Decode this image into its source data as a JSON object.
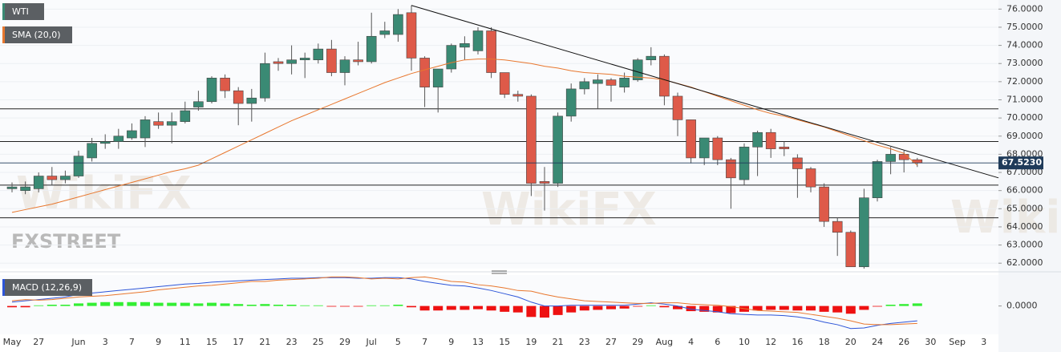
{
  "chart_data": {
    "type": "candlestick",
    "categories": [
      "May",
      null,
      "27",
      null,
      null,
      "Jun",
      null,
      "3",
      null,
      "7",
      null,
      "9",
      null,
      "11",
      null,
      "15",
      null,
      "17",
      null,
      "21",
      null,
      "23",
      null,
      "25",
      null,
      "29",
      null,
      "Jul",
      null,
      "5",
      null,
      "7",
      null,
      "9",
      null,
      "13",
      null,
      "15",
      null,
      "19",
      null,
      "21",
      null,
      "23",
      null,
      "27",
      null,
      "29",
      null,
      "Aug",
      null,
      "4",
      null,
      "6",
      null,
      "10",
      null,
      "12",
      null,
      "16",
      null,
      "18",
      null,
      "20",
      null,
      "24",
      null,
      "26",
      null,
      "30",
      null,
      "Sep",
      null,
      "3",
      null
    ],
    "series": [
      {
        "name": "WTI",
        "up_color": "#3a8a74",
        "down_color": "#de5a49",
        "open": [
          66.1,
          66.0,
          66.1,
          66.8,
          66.6,
          66.8,
          67.8,
          68.6,
          68.7,
          68.9,
          68.9,
          69.8,
          69.6,
          69.8,
          70.6,
          70.9,
          72.2,
          71.5,
          70.8,
          71.1,
          73.1,
          73.0,
          73.2,
          73.2,
          73.8,
          72.5,
          73.2,
          73.1,
          74.6,
          74.6,
          75.8,
          73.3,
          71.7,
          72.7,
          73.9,
          73.7,
          74.8,
          72.5,
          71.3,
          71.2,
          66.5,
          66.4,
          70.1,
          71.6,
          71.9,
          72.1,
          71.7,
          72.1,
          73.2,
          73.4,
          71.2,
          69.9,
          67.8,
          68.9,
          67.7,
          66.6,
          68.4,
          69.2,
          68.4,
          67.8,
          67.2,
          66.2,
          64.3,
          63.7,
          61.8,
          65.6,
          67.6,
          68.0,
          67.7,
          null,
          null,
          null,
          null,
          null,
          null
        ],
        "high": [
          66.45,
          66.5,
          67.0,
          67.3,
          67.1,
          68.2,
          68.9,
          69.1,
          69.4,
          69.7,
          70.1,
          70.3,
          70.3,
          70.9,
          71.5,
          72.3,
          72.4,
          71.7,
          71.6,
          73.6,
          73.3,
          74.0,
          73.6,
          74.1,
          74.3,
          73.4,
          74.2,
          75.8,
          75.3,
          76.0,
          76.2,
          73.4,
          72.7,
          74.1,
          74.5,
          75.0,
          75.0,
          72.5,
          71.5,
          71.3,
          67.3,
          70.3,
          71.9,
          72.2,
          72.4,
          72.2,
          72.5,
          73.3,
          73.9,
          73.5,
          71.4,
          69.9,
          68.9,
          69.0,
          67.8,
          68.6,
          69.3,
          69.4,
          68.7,
          68.0,
          67.3,
          66.4,
          64.5,
          63.8,
          66.1,
          67.7,
          68.4,
          68.2,
          67.8,
          null,
          null,
          null,
          null,
          null,
          null
        ],
        "low": [
          65.9,
          65.8,
          65.9,
          66.3,
          66.4,
          66.7,
          67.6,
          68.3,
          68.3,
          68.8,
          68.4,
          69.4,
          68.6,
          69.7,
          70.4,
          70.8,
          71.1,
          69.6,
          69.8,
          70.9,
          72.6,
          72.4,
          72.2,
          73.0,
          72.3,
          71.8,
          72.9,
          73.0,
          74.4,
          74.2,
          72.6,
          70.6,
          70.3,
          72.5,
          73.2,
          73.5,
          72.2,
          71.1,
          70.9,
          65.7,
          64.9,
          66.2,
          69.8,
          71.3,
          70.5,
          70.9,
          71.4,
          72.0,
          72.9,
          70.7,
          69.0,
          67.5,
          67.4,
          67.4,
          65.0,
          66.3,
          66.8,
          67.8,
          67.9,
          65.6,
          65.9,
          64.0,
          62.4,
          61.8,
          61.7,
          65.4,
          66.9,
          67.0,
          67.3,
          null,
          null,
          null,
          null,
          null,
          null
        ],
        "close": [
          66.2,
          66.2,
          66.8,
          66.6,
          66.8,
          67.9,
          68.6,
          68.7,
          69.0,
          69.3,
          69.9,
          69.6,
          69.8,
          70.4,
          70.9,
          72.2,
          71.5,
          70.8,
          71.1,
          73.0,
          73.0,
          73.2,
          73.3,
          73.8,
          72.5,
          73.2,
          73.1,
          74.5,
          74.8,
          75.7,
          73.3,
          71.7,
          72.7,
          74.0,
          74.1,
          74.8,
          72.5,
          71.3,
          71.2,
          66.4,
          66.4,
          70.1,
          71.6,
          72.0,
          72.1,
          71.8,
          72.2,
          73.2,
          73.4,
          71.2,
          69.9,
          67.8,
          68.9,
          67.7,
          66.7,
          68.4,
          69.2,
          68.3,
          68.3,
          67.2,
          66.2,
          64.3,
          63.7,
          61.8,
          65.6,
          67.6,
          68.0,
          67.7,
          67.523,
          null,
          null,
          null,
          null,
          null,
          null
        ]
      }
    ],
    "sma": {
      "name": "SMA (20,0)",
      "color": "#e8772e",
      "values": [
        64.8,
        64.95,
        65.1,
        65.25,
        65.45,
        65.65,
        65.85,
        66.05,
        66.25,
        66.45,
        66.65,
        66.85,
        67.05,
        67.2,
        67.4,
        67.75,
        68.1,
        68.45,
        68.8,
        69.15,
        69.5,
        69.85,
        70.15,
        70.45,
        70.75,
        71.05,
        71.35,
        71.65,
        71.95,
        72.2,
        72.45,
        72.65,
        72.85,
        73.05,
        73.2,
        73.25,
        73.25,
        73.2,
        73.1,
        73.0,
        72.85,
        72.75,
        72.6,
        72.5,
        72.45,
        72.4,
        72.3,
        72.25,
        72.2,
        72.1,
        71.9,
        71.7,
        71.45,
        71.2,
        70.95,
        70.7,
        70.45,
        70.25,
        70.1,
        69.9,
        69.7,
        69.5,
        69.25,
        69.0,
        68.75,
        68.5,
        68.3,
        68.05,
        67.4,
        null,
        null,
        null,
        null,
        null,
        null
      ]
    },
    "hlines": [
      70.5,
      68.7,
      66.3,
      64.5
    ],
    "trendline": {
      "color": "#111111",
      "x": [
        30,
        74.1
      ],
      "values": [
        76.2,
        66.7
      ]
    },
    "last_price": {
      "value": 67.523,
      "label": "67.5230"
    },
    "ylim": [
      61.7,
      76.5
    ],
    "yticks": [
      {
        "value": 62,
        "label": "62.0000"
      },
      {
        "value": 63,
        "label": "63.0000"
      },
      {
        "value": 64,
        "label": "64.0000"
      },
      {
        "value": 65,
        "label": "65.0000"
      },
      {
        "value": 66,
        "label": "66.0000"
      },
      {
        "value": 67,
        "label": "67.0000"
      },
      {
        "value": 68,
        "label": "68.0000"
      },
      {
        "value": 69,
        "label": "69.0000"
      },
      {
        "value": 70,
        "label": "70.0000"
      },
      {
        "value": 71,
        "label": "71.0000"
      },
      {
        "value": 72,
        "label": "72.0000"
      },
      {
        "value": 73,
        "label": "73.0000"
      },
      {
        "value": 74,
        "label": "74.0000"
      },
      {
        "value": 75,
        "label": "75.0000"
      },
      {
        "value": 76,
        "label": "76.0000"
      }
    ],
    "grid": true,
    "macd": {
      "name": "MACD (12,26,9)",
      "ylim": [
        -2.2,
        2.4
      ],
      "yticks": [
        {
          "value": 0,
          "label": "0.0000"
        }
      ],
      "macd_line": {
        "color": "#2d55d8",
        "values": [
          0.3,
          0.4,
          0.5,
          0.6,
          0.7,
          0.9,
          1.0,
          1.1,
          1.2,
          1.3,
          1.4,
          1.5,
          1.6,
          1.7,
          1.75,
          1.85,
          1.9,
          1.95,
          2.0,
          2.05,
          2.1,
          2.15,
          2.15,
          2.2,
          2.2,
          2.2,
          2.15,
          2.15,
          2.2,
          2.2,
          2.1,
          1.9,
          1.75,
          1.6,
          1.55,
          1.4,
          1.2,
          0.95,
          0.7,
          0.3,
          0.0,
          0.0,
          0.05,
          0.05,
          0.05,
          0.05,
          0.05,
          0.15,
          0.25,
          0.15,
          0.0,
          -0.25,
          -0.35,
          -0.45,
          -0.6,
          -0.65,
          -0.7,
          -0.7,
          -0.75,
          -0.85,
          -1.0,
          -1.25,
          -1.45,
          -1.75,
          -1.7,
          -1.5,
          -1.35,
          -1.25,
          -1.15,
          null,
          null,
          null,
          null,
          null,
          null
        ]
      },
      "signal_line": {
        "color": "#e8772e",
        "values": [
          0.4,
          0.5,
          0.45,
          0.5,
          0.6,
          0.7,
          0.75,
          0.8,
          0.9,
          1.0,
          1.1,
          1.25,
          1.35,
          1.45,
          1.55,
          1.6,
          1.7,
          1.8,
          1.9,
          1.9,
          2.0,
          2.05,
          2.1,
          2.15,
          2.25,
          2.25,
          2.2,
          2.1,
          2.15,
          2.1,
          2.2,
          2.25,
          2.1,
          1.9,
          1.85,
          1.65,
          1.55,
          1.4,
          1.2,
          1.15,
          0.9,
          0.7,
          0.55,
          0.4,
          0.35,
          0.3,
          0.25,
          0.2,
          0.2,
          0.25,
          0.25,
          0.15,
          0.1,
          0.05,
          -0.05,
          -0.2,
          -0.35,
          -0.4,
          -0.45,
          -0.5,
          -0.65,
          -0.8,
          -0.95,
          -1.15,
          -1.4,
          -1.45,
          -1.45,
          -1.4,
          -1.35,
          null,
          null,
          null,
          null,
          null,
          null
        ]
      },
      "histogram": {
        "pos_color": "#33ee33",
        "neg_color": "#ee1111",
        "values": [
          -0.1,
          -0.1,
          0.05,
          0.1,
          0.1,
          0.2,
          0.25,
          0.3,
          0.3,
          0.3,
          0.3,
          0.25,
          0.25,
          0.25,
          0.2,
          0.25,
          0.2,
          0.15,
          0.1,
          0.15,
          0.1,
          0.1,
          0.05,
          0.05,
          -0.05,
          -0.05,
          -0.05,
          0.05,
          0.05,
          0.1,
          -0.1,
          -0.35,
          -0.35,
          -0.3,
          -0.3,
          -0.25,
          -0.35,
          -0.45,
          -0.5,
          -0.85,
          -0.9,
          -0.7,
          -0.5,
          -0.35,
          -0.3,
          -0.25,
          -0.2,
          -0.05,
          0.05,
          -0.1,
          -0.25,
          -0.4,
          -0.45,
          -0.5,
          -0.55,
          -0.45,
          -0.35,
          -0.3,
          -0.3,
          -0.35,
          -0.35,
          -0.45,
          -0.5,
          -0.6,
          -0.3,
          -0.05,
          0.1,
          0.15,
          0.2,
          null,
          null,
          null,
          null,
          null,
          null
        ]
      }
    },
    "brand": "FXSTREET",
    "watermark": "WikiFX"
  }
}
